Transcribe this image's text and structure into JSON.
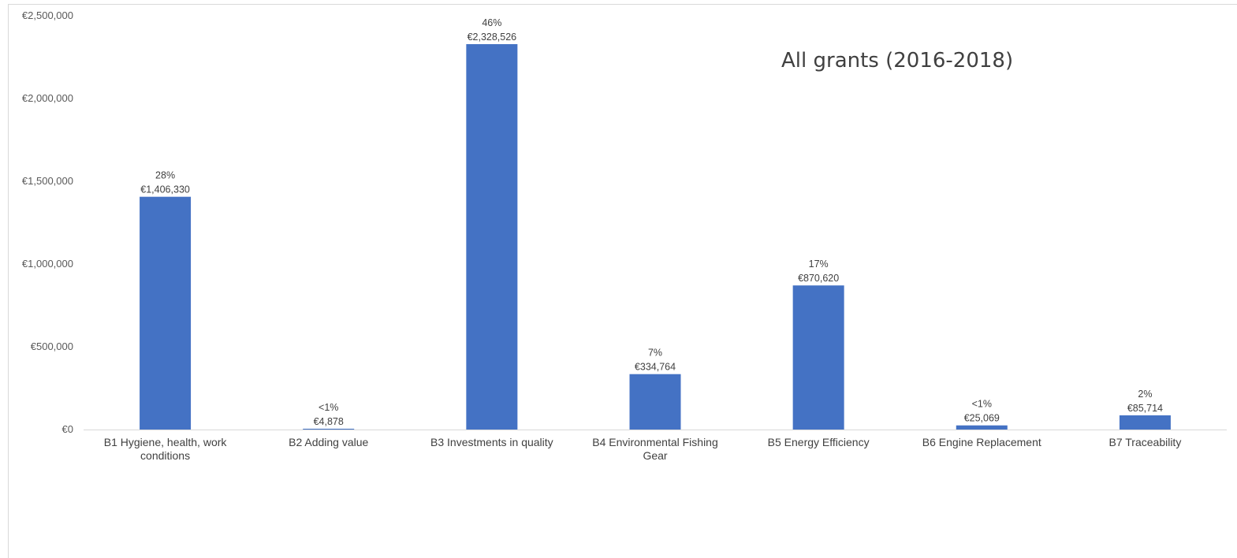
{
  "chart_data": {
    "type": "bar",
    "title": "All grants (2016-2018)",
    "xlabel": "",
    "ylabel": "",
    "ylim": [
      0,
      2500000
    ],
    "yticks": [
      {
        "value": 0,
        "label": "€0"
      },
      {
        "value": 500000,
        "label": "€500,000"
      },
      {
        "value": 1000000,
        "label": "€1,000,000"
      },
      {
        "value": 1500000,
        "label": "€1,500,000"
      },
      {
        "value": 2000000,
        "label": "€2,000,000"
      },
      {
        "value": 2500000,
        "label": "€2,500,000"
      }
    ],
    "categories": [
      [
        "B1 Hygiene, health, work",
        "conditions"
      ],
      [
        "B2 Adding value"
      ],
      [
        "B3 Investments in quality"
      ],
      [
        "B4 Environmental Fishing",
        "Gear"
      ],
      [
        "B5 Energy Efficiency"
      ],
      [
        "B6 Engine Replacement"
      ],
      [
        "B7 Traceability"
      ]
    ],
    "values": [
      1406330,
      4878,
      2328526,
      334764,
      870620,
      25069,
      85714
    ],
    "data_labels": [
      {
        "percent": "28%",
        "amount": "€1,406,330"
      },
      {
        "percent": "<1%",
        "amount": "€4,878"
      },
      {
        "percent": "46%",
        "amount": "€2,328,526"
      },
      {
        "percent": "7%",
        "amount": "€334,764"
      },
      {
        "percent": "17%",
        "amount": "€870,620"
      },
      {
        "percent": "<1%",
        "amount": "€25,069"
      },
      {
        "percent": "2%",
        "amount": "€85,714"
      }
    ],
    "bar_color": "#4472c4",
    "grid": false,
    "legend": "none"
  }
}
